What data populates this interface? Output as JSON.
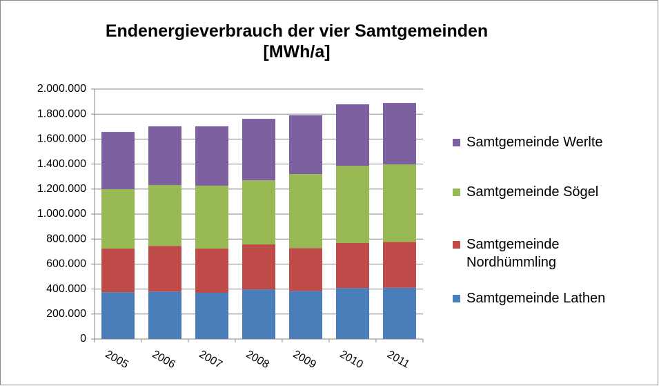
{
  "chart_data": {
    "type": "stacked_bar",
    "title": "Endenergieverbrauch der vier Samtgemeinden [MWh/a]",
    "categories": [
      "2005",
      "2006",
      "2007",
      "2008",
      "2009",
      "2010",
      "2011"
    ],
    "series": [
      {
        "name": "Samtgemeinde Lathen",
        "color": "#4a7ebb",
        "values": [
          375000,
          380000,
          370000,
          397000,
          385000,
          408000,
          410000
        ]
      },
      {
        "name": "Samtgemeinde Nordhümmling",
        "color": "#be4b48",
        "values": [
          349000,
          365000,
          354000,
          360000,
          343000,
          360000,
          367000
        ]
      },
      {
        "name": "Samtgemeinde Sögel",
        "color": "#98b954",
        "values": [
          475000,
          487000,
          503000,
          513000,
          592000,
          618000,
          620000
        ]
      },
      {
        "name": "Samtgemeinde Werlte",
        "color": "#7d60a0",
        "values": [
          458000,
          470000,
          475000,
          492000,
          470000,
          492000,
          492000
        ]
      }
    ],
    "ylim": [
      0,
      2000000
    ],
    "yticks": [
      0,
      {
        "value": 200000,
        "label": "200.000"
      },
      {
        "value": 400000,
        "label": "400.000"
      },
      {
        "value": 600000,
        "label": "600.000"
      },
      {
        "value": 800000,
        "label": "800.000"
      },
      {
        "value": 1000000,
        "label": "1.000.000"
      },
      {
        "value": 1200000,
        "label": "1.200.000"
      },
      {
        "value": 1400000,
        "label": "1.400.000"
      },
      {
        "value": 1600000,
        "label": "1.600.000"
      },
      {
        "value": 1800000,
        "label": "1.800.000"
      },
      {
        "value": 2000000,
        "label": "2.000.000"
      }
    ],
    "grid": true,
    "legend": "right"
  }
}
